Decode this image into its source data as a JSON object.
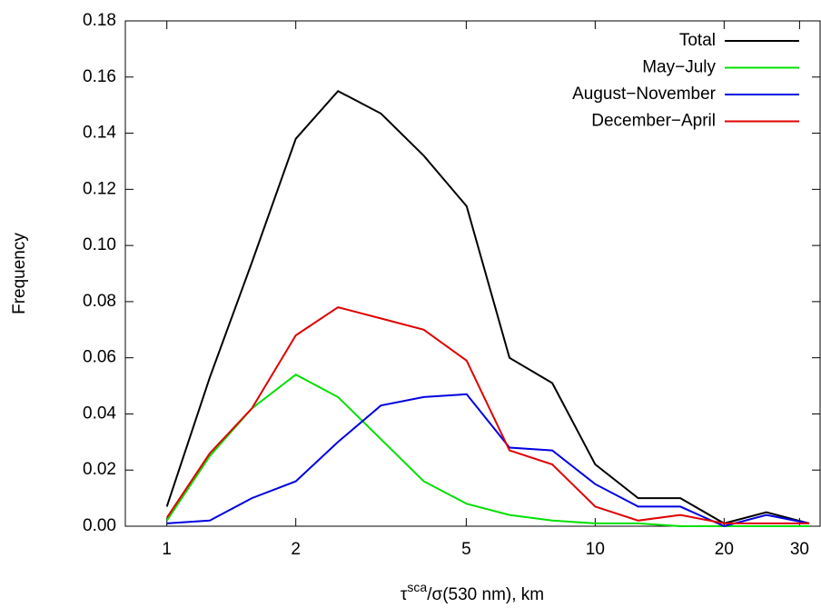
{
  "chart_data": {
    "type": "line",
    "xlabel": {
      "base": "τ",
      "sup": "sca",
      "rest": "/σ(530 nm), km"
    },
    "ylabel": "Frequency",
    "x": [
      1,
      1.26,
      1.58,
      2,
      2.51,
      3.16,
      3.98,
      5.01,
      6.31,
      7.94,
      10,
      12.6,
      15.8,
      20,
      25.1,
      31.6
    ],
    "series": [
      {
        "name": "Total",
        "color": "#000000",
        "values": [
          0.007,
          0.053,
          0.094,
          0.138,
          0.155,
          0.147,
          0.132,
          0.114,
          0.06,
          0.051,
          0.022,
          0.01,
          0.01,
          0.001,
          0.005,
          0.001
        ]
      },
      {
        "name": "May−July",
        "color": "#00e000",
        "values": [
          0.002,
          0.025,
          0.042,
          0.054,
          0.046,
          0.031,
          0.016,
          0.008,
          0.004,
          0.002,
          0.001,
          0.001,
          0.0,
          0.0,
          0.0,
          0.0
        ]
      },
      {
        "name": "August−November",
        "color": "#0000e0",
        "values": [
          0.001,
          0.002,
          0.01,
          0.016,
          0.03,
          0.043,
          0.046,
          0.047,
          0.028,
          0.027,
          0.015,
          0.007,
          0.007,
          0.0,
          0.004,
          0.001
        ]
      },
      {
        "name": "December−April",
        "color": "#e00000",
        "values": [
          0.003,
          0.026,
          0.042,
          0.068,
          0.078,
          0.074,
          0.07,
          0.059,
          0.027,
          0.022,
          0.007,
          0.002,
          0.004,
          0.001,
          0.001,
          0.001
        ]
      }
    ],
    "xscale": "log",
    "xlim": [
      0.8,
      33.5
    ],
    "xticks": [
      1,
      2,
      5,
      10,
      20,
      30
    ],
    "ylim": [
      0,
      0.18
    ],
    "yticks": [
      {
        "value": 0,
        "label": "0.00"
      },
      {
        "value": 0.02,
        "label": "0.02"
      },
      {
        "value": 0.04,
        "label": "0.04"
      },
      {
        "value": 0.06,
        "label": "0.06"
      },
      {
        "value": 0.08,
        "label": "0.08"
      },
      {
        "value": 0.1,
        "label": "0.10"
      },
      {
        "value": 0.12,
        "label": "0.12"
      },
      {
        "value": 0.14,
        "label": "0.14"
      },
      {
        "value": 0.16,
        "label": "0.16"
      },
      {
        "value": 0.18,
        "label": "0.18"
      }
    ],
    "legend": "top-right"
  }
}
